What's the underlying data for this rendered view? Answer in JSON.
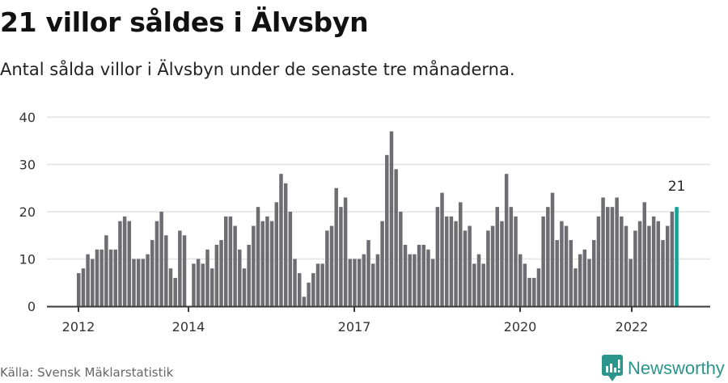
{
  "header": {
    "title": "21 villor såldes i Älvsbyn",
    "subtitle": "Antal sålda villor i Älvsbyn under de senaste tre månaderna."
  },
  "footer": {
    "source": "Källa: Svensk Mäklarstatistik",
    "brand": "Newsworthy",
    "brand_color": "#2a958a"
  },
  "chart_data": {
    "type": "bar",
    "title": "21 villor såldes i Älvsbyn",
    "subtitle": "Antal sålda villor i Älvsbyn under de senaste tre månaderna.",
    "xlabel": "",
    "ylabel": "",
    "ylim": [
      0,
      40
    ],
    "yticks": [
      0,
      10,
      20,
      30,
      40
    ],
    "grid": true,
    "legend": "none",
    "xticks": [
      {
        "label": "2012",
        "index": 0
      },
      {
        "label": "2014",
        "index": 24
      },
      {
        "label": "2017",
        "index": 60
      },
      {
        "label": "2020",
        "index": 96
      },
      {
        "label": "2022",
        "index": 120
      }
    ],
    "bar_color": "#6e6d72",
    "highlight_color": "#16a096",
    "annotation": {
      "text": "21",
      "index": "last"
    },
    "values": [
      7,
      8,
      11,
      10,
      12,
      12,
      15,
      12,
      12,
      18,
      19,
      18,
      10,
      10,
      10,
      11,
      14,
      18,
      20,
      15,
      8,
      6,
      16,
      15,
      0,
      9,
      10,
      9,
      12,
      8,
      13,
      14,
      19,
      19,
      17,
      12,
      8,
      13,
      17,
      21,
      18,
      19,
      18,
      22,
      28,
      26,
      20,
      10,
      7,
      2,
      5,
      7,
      9,
      9,
      16,
      17,
      25,
      21,
      23,
      10,
      10,
      10,
      11,
      14,
      9,
      11,
      18,
      32,
      37,
      29,
      20,
      13,
      11,
      11,
      13,
      13,
      12,
      10,
      21,
      24,
      19,
      19,
      18,
      22,
      16,
      17,
      9,
      11,
      9,
      16,
      17,
      21,
      18,
      28,
      21,
      19,
      11,
      9,
      6,
      6,
      8,
      19,
      21,
      24,
      14,
      18,
      17,
      14,
      8,
      11,
      12,
      10,
      14,
      19,
      23,
      21,
      21,
      23,
      19,
      17,
      10,
      16,
      18,
      22,
      17,
      19,
      18,
      14,
      17,
      20,
      21
    ]
  }
}
